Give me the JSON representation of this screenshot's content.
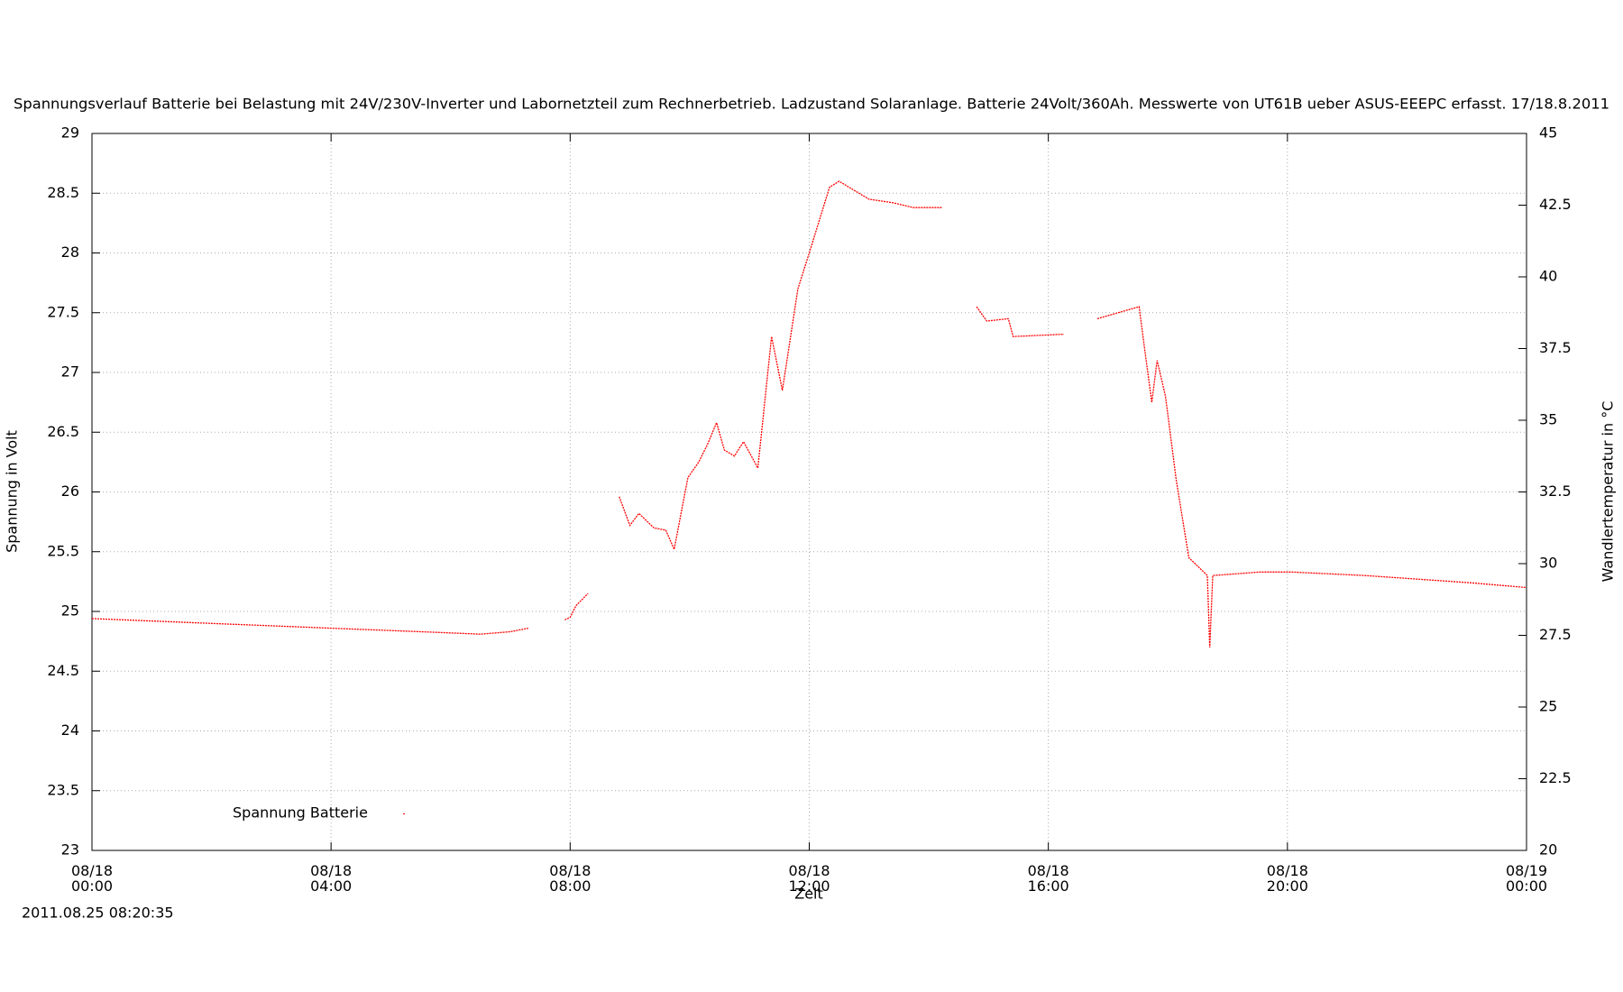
{
  "chart_data": {
    "type": "line",
    "title": "Spannungsverlauf Batterie bei Belastung mit 24V/230V-Inverter und Labornetzteil zum Rechnerbetrieb. Ladzustand Solaranlage. Batterie 24Volt/360Ah. Messwerte von UT61B ueber ASUS-EEEPC erfasst. 17/18.8.2011",
    "x_label": "Zeit",
    "y_label": "Spannung in Volt",
    "y2_label": "Wandlertemperatur in °C",
    "footer": "2011.08.25 08:20:35",
    "xlim": [
      0,
      24
    ],
    "xticks": [
      {
        "value": 0,
        "label": "08/18 00:00"
      },
      {
        "value": 4,
        "label": "08/18 04:00"
      },
      {
        "value": 8,
        "label": "08/18 08:00"
      },
      {
        "value": 12,
        "label": "08/18 12:00"
      },
      {
        "value": 16,
        "label": "08/18 16:00"
      },
      {
        "value": 20,
        "label": "08/18 20:00"
      },
      {
        "value": 24,
        "label": "08/19 00:00"
      }
    ],
    "ylim": [
      23,
      29
    ],
    "yticks": [
      23,
      23.5,
      24,
      24.5,
      25,
      25.5,
      26,
      26.5,
      27,
      27.5,
      28,
      28.5,
      29
    ],
    "y2lim": [
      20,
      45
    ],
    "y2ticks": [
      20,
      22.5,
      25,
      27.5,
      30,
      32.5,
      35,
      37.5,
      40,
      42.5,
      45
    ],
    "grid": true,
    "legend": "lower-left",
    "series": [
      {
        "name": "Spannung Batterie",
        "color": "#ff0000",
        "x": [
          0,
          1,
          2,
          3,
          4,
          5,
          6,
          6.5,
          7,
          7.3,
          null,
          7.91,
          8.0,
          8.1,
          8.2,
          8.3,
          null,
          8.82,
          9.0,
          9.15,
          9.4,
          9.6,
          9.74,
          9.97,
          10.15,
          10.3,
          10.45,
          10.58,
          10.75,
          10.9,
          11.14,
          11.37,
          11.55,
          11.81,
          12.0,
          12.34,
          12.5,
          13.0,
          13.4,
          13.74,
          14.22,
          null,
          14.8,
          14.97,
          15.33,
          15.41,
          16.26,
          null,
          16.82,
          17.52,
          17.61,
          17.73,
          17.82,
          17.96,
          18.14,
          18.35,
          18.66,
          18.7,
          18.75,
          19.54,
          20.07,
          21.3,
          23.06,
          24
        ],
        "values": [
          24.94,
          24.92,
          24.9,
          24.88,
          24.86,
          24.84,
          24.82,
          24.81,
          24.83,
          24.86,
          null,
          24.93,
          24.95,
          25.05,
          25.1,
          25.15,
          null,
          25.96,
          25.72,
          25.82,
          25.7,
          25.68,
          25.52,
          26.12,
          26.25,
          26.4,
          26.58,
          26.35,
          26.3,
          26.42,
          26.2,
          27.3,
          26.85,
          27.7,
          28.0,
          28.55,
          28.6,
          28.45,
          28.42,
          28.38,
          28.38,
          null,
          27.55,
          27.43,
          27.45,
          27.3,
          27.32,
          null,
          27.45,
          27.55,
          27.2,
          26.75,
          27.1,
          26.8,
          26.1,
          25.45,
          25.3,
          24.7,
          25.3,
          25.33,
          25.33,
          25.3,
          25.24,
          25.2
        ]
      }
    ]
  }
}
